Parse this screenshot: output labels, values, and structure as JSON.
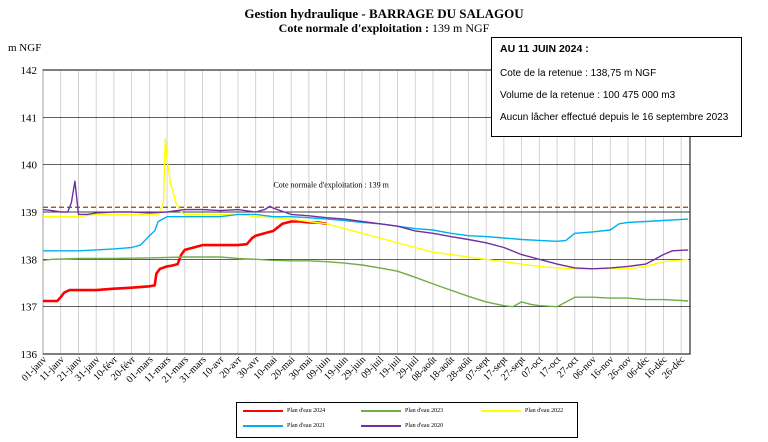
{
  "title": "Gestion hydraulique - BARRAGE DU SALAGOU",
  "subtitle_bold": "Cote normale d'exploitation : ",
  "subtitle_value": "139 m NGF",
  "info": {
    "header": "AU 11 JUIN 2024 :",
    "line1": "Cote de la retenue : 138,75 m NGF",
    "line2": "Volume de la retenue : 100 475 000 m3",
    "line3": "Aucun lâcher effectué depuis le 16 septembre 2023"
  },
  "chart_data": {
    "type": "line",
    "ylabel": "m NGF",
    "ylim": [
      136,
      142
    ],
    "yticks": [
      136,
      137,
      138,
      139,
      140,
      141,
      142
    ],
    "xlim": [
      0,
      365
    ],
    "grid": true,
    "x_tick_days": [
      0,
      10,
      20,
      30,
      40,
      50,
      60,
      70,
      80,
      90,
      100,
      110,
      120,
      130,
      140,
      150,
      160,
      170,
      180,
      190,
      200,
      210,
      220,
      230,
      240,
      250,
      260,
      270,
      280,
      290,
      300,
      310,
      320,
      330,
      340,
      350,
      360
    ],
    "x_tick_labels": [
      "01-janv",
      "11-janv",
      "21-janv",
      "31-janv",
      "10-févr",
      "20-févr",
      "01-mars",
      "11-mars",
      "21-mars",
      "31-mars",
      "10-avr",
      "20-avr",
      "30-avr",
      "10-mai",
      "20-mai",
      "30-mai",
      "09-juin",
      "19-juin",
      "29-juin",
      "09-juil",
      "19-juil",
      "29-juil",
      "08-août",
      "18-août",
      "28-août",
      "07-sept",
      "17-sept",
      "27-sept",
      "07-oct",
      "17-oct",
      "27-oct",
      "06-nov",
      "16-nov",
      "26-nov",
      "06-déc",
      "16-déc",
      "26-déc"
    ],
    "reference": {
      "label": "Cote normale d'exploitation : 139 m",
      "value": 139.1,
      "color": "#8b4513"
    },
    "series": [
      {
        "name": "Plan d'eau 2024",
        "color": "#ff0000",
        "width": 2.6,
        "x": [
          0,
          8,
          10,
          12,
          15,
          20,
          30,
          40,
          50,
          60,
          63,
          64,
          66,
          70,
          73,
          76,
          78,
          80,
          90,
          100,
          110,
          115,
          118,
          120,
          125,
          130,
          135,
          140,
          145,
          150,
          155,
          160
        ],
        "y": [
          137.12,
          137.12,
          137.2,
          137.3,
          137.35,
          137.35,
          137.35,
          137.38,
          137.4,
          137.43,
          137.45,
          137.7,
          137.8,
          137.85,
          137.87,
          137.9,
          138.1,
          138.2,
          138.3,
          138.3,
          138.3,
          138.32,
          138.45,
          138.5,
          138.55,
          138.6,
          138.75,
          138.8,
          138.8,
          138.78,
          138.78,
          138.75
        ]
      },
      {
        "name": "Plan d'eau 2023",
        "color": "#70ad47",
        "width": 1.4,
        "x": [
          0,
          5,
          20,
          40,
          60,
          80,
          90,
          100,
          110,
          120,
          130,
          140,
          150,
          160,
          170,
          180,
          190,
          200,
          210,
          220,
          230,
          240,
          250,
          260,
          265,
          270,
          275,
          280,
          290,
          300,
          310,
          320,
          330,
          340,
          350,
          360,
          364
        ],
        "y": [
          137.98,
          138.0,
          138.02,
          138.02,
          138.03,
          138.05,
          138.05,
          138.05,
          138.02,
          138.0,
          137.98,
          137.97,
          137.97,
          137.95,
          137.92,
          137.88,
          137.82,
          137.75,
          137.62,
          137.48,
          137.35,
          137.22,
          137.1,
          137.02,
          137.0,
          137.1,
          137.05,
          137.02,
          137.0,
          137.2,
          137.2,
          137.18,
          137.18,
          137.15,
          137.15,
          137.13,
          137.12
        ]
      },
      {
        "name": "Plan d'eau 2022",
        "color": "#ffff00",
        "width": 1.4,
        "x": [
          0,
          10,
          20,
          30,
          40,
          50,
          60,
          65,
          68,
          69,
          70,
          72,
          75,
          78,
          80,
          90,
          100,
          110,
          120,
          130,
          140,
          150,
          160,
          170,
          180,
          190,
          200,
          210,
          220,
          230,
          240,
          250,
          260,
          270,
          280,
          290,
          300,
          310,
          320,
          330,
          340,
          350,
          364
        ],
        "y": [
          138.9,
          138.9,
          138.9,
          138.95,
          138.95,
          138.95,
          138.95,
          138.95,
          139.2,
          140.55,
          140.1,
          139.6,
          139.2,
          139.0,
          138.95,
          138.95,
          138.95,
          138.95,
          138.9,
          138.88,
          138.85,
          138.8,
          138.75,
          138.65,
          138.55,
          138.45,
          138.35,
          138.25,
          138.15,
          138.1,
          138.05,
          138.0,
          137.95,
          137.9,
          137.85,
          137.82,
          137.8,
          137.8,
          137.8,
          137.8,
          137.85,
          137.95,
          138.0
        ]
      },
      {
        "name": "Plan d'eau 2021",
        "color": "#00b0f0",
        "width": 1.4,
        "x": [
          0,
          10,
          20,
          30,
          40,
          50,
          55,
          60,
          63,
          65,
          70,
          80,
          90,
          100,
          110,
          120,
          130,
          140,
          150,
          160,
          170,
          180,
          190,
          200,
          210,
          220,
          230,
          240,
          250,
          260,
          270,
          280,
          290,
          295,
          300,
          310,
          320,
          325,
          330,
          340,
          350,
          364
        ],
        "y": [
          138.18,
          138.18,
          138.18,
          138.2,
          138.22,
          138.25,
          138.3,
          138.5,
          138.6,
          138.8,
          138.9,
          138.9,
          138.9,
          138.9,
          138.95,
          138.95,
          138.9,
          138.9,
          138.88,
          138.85,
          138.82,
          138.78,
          138.75,
          138.7,
          138.65,
          138.62,
          138.55,
          138.5,
          138.48,
          138.45,
          138.42,
          138.4,
          138.38,
          138.4,
          138.55,
          138.58,
          138.62,
          138.75,
          138.78,
          138.8,
          138.82,
          138.85
        ]
      },
      {
        "name": "Plan d'eau 2020",
        "color": "#7030a0",
        "width": 1.4,
        "x": [
          0,
          5,
          10,
          14,
          16,
          18,
          19,
          20,
          25,
          30,
          40,
          50,
          60,
          70,
          80,
          90,
          100,
          110,
          120,
          125,
          128,
          130,
          140,
          150,
          160,
          170,
          180,
          190,
          200,
          210,
          220,
          230,
          240,
          250,
          260,
          270,
          280,
          290,
          300,
          310,
          320,
          330,
          340,
          350,
          355,
          364
        ],
        "y": [
          139.05,
          139.03,
          139.0,
          139.0,
          139.2,
          139.65,
          139.3,
          138.95,
          138.95,
          138.98,
          139.0,
          139.0,
          138.98,
          139.0,
          139.05,
          139.05,
          139.03,
          139.05,
          139.0,
          139.05,
          139.12,
          139.08,
          138.95,
          138.92,
          138.88,
          138.85,
          138.8,
          138.75,
          138.7,
          138.6,
          138.55,
          138.48,
          138.42,
          138.35,
          138.25,
          138.1,
          138.0,
          137.9,
          137.82,
          137.8,
          137.82,
          137.85,
          137.9,
          138.1,
          138.18,
          138.2
        ]
      }
    ]
  }
}
